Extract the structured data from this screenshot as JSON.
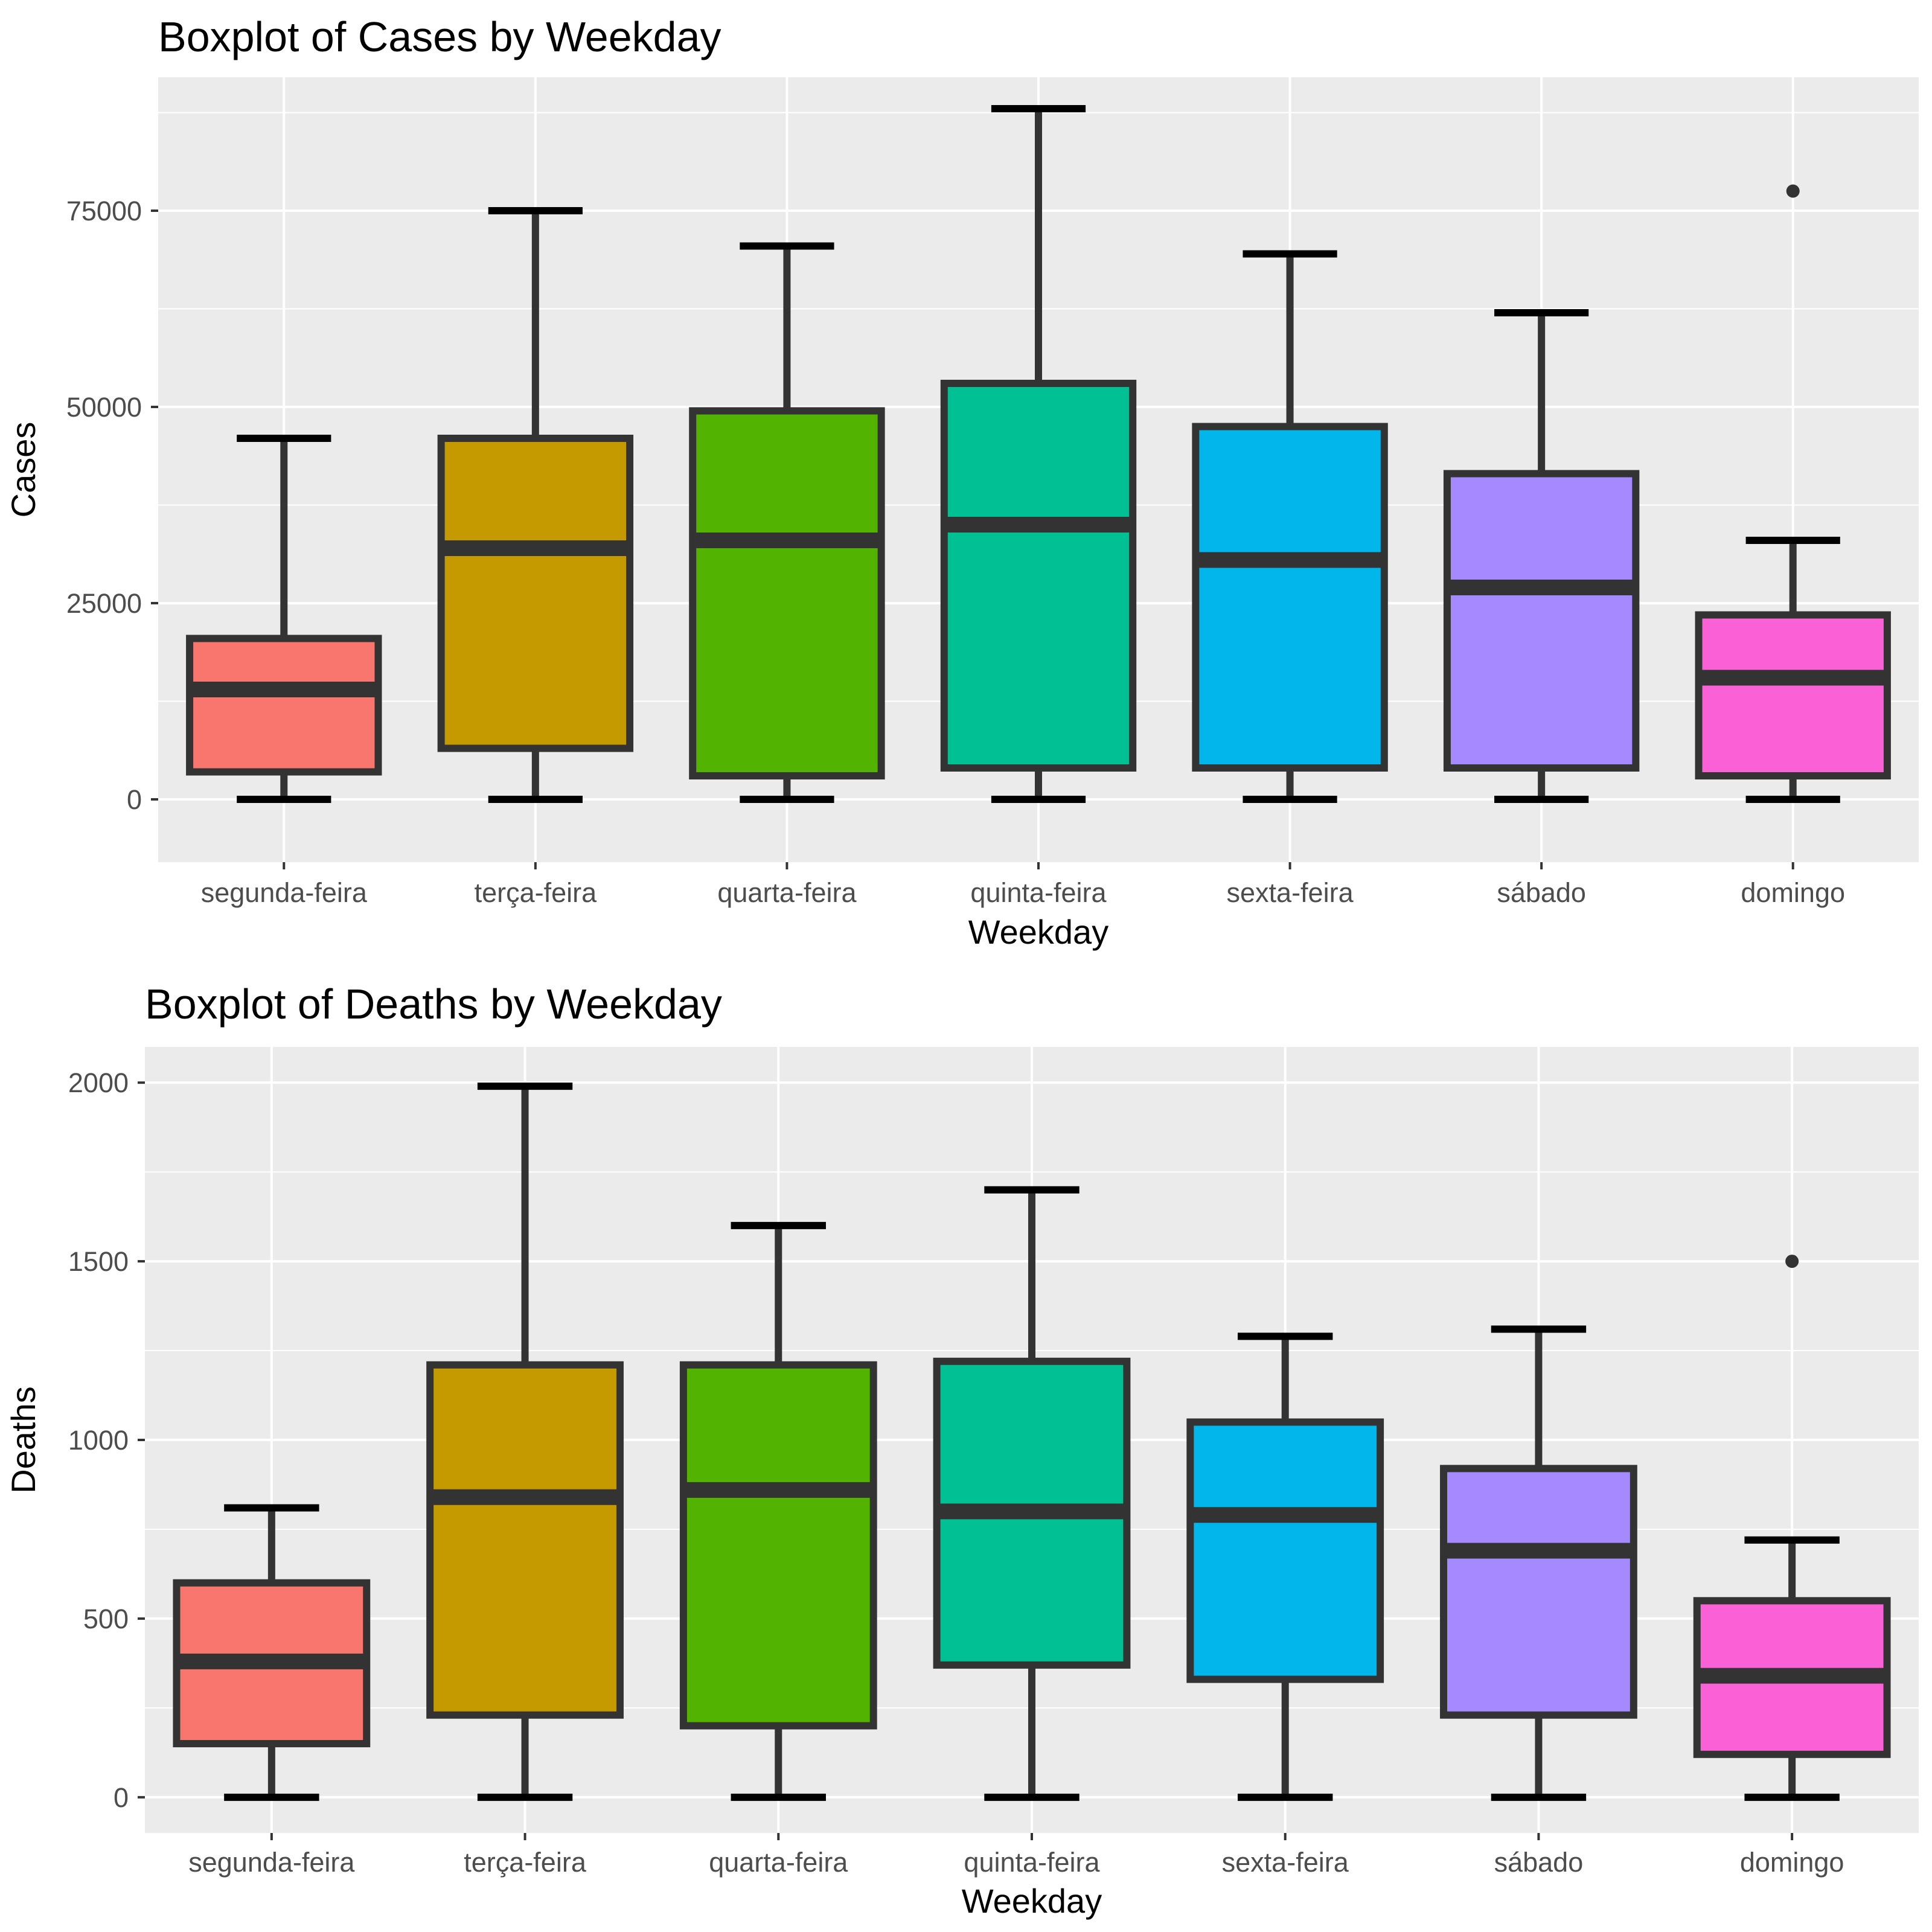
{
  "chart_data": [
    {
      "type": "boxplot",
      "title": "Boxplot of Cases by Weekday",
      "xlabel": "Weekday",
      "ylabel": "Cases",
      "ylim": [
        -8000,
        92000
      ],
      "yticks": [
        0,
        25000,
        50000,
        75000
      ],
      "ytick_labels": [
        "0",
        "25000",
        "50000",
        "75000"
      ],
      "grid": true,
      "legend": "none",
      "categories": [
        "segunda-feira",
        "terça-feira",
        "quarta-feira",
        "quinta-feira",
        "sexta-feira",
        "sábado",
        "domingo"
      ],
      "colors": [
        "#F8766D",
        "#C49A00",
        "#53B400",
        "#00C094",
        "#00B6EB",
        "#A58AFF",
        "#FB61D7"
      ],
      "boxes": [
        {
          "min": 0,
          "q1": 3500,
          "median": 14000,
          "q3": 20500,
          "max": 46000,
          "outliers": []
        },
        {
          "min": 0,
          "q1": 6500,
          "median": 32000,
          "q3": 46000,
          "max": 75000,
          "outliers": []
        },
        {
          "min": 0,
          "q1": 3000,
          "median": 33000,
          "q3": 49500,
          "max": 70500,
          "outliers": []
        },
        {
          "min": 0,
          "q1": 4000,
          "median": 35000,
          "q3": 53000,
          "max": 88000,
          "outliers": []
        },
        {
          "min": 0,
          "q1": 4000,
          "median": 30500,
          "q3": 47500,
          "max": 69500,
          "outliers": []
        },
        {
          "min": 0,
          "q1": 4000,
          "median": 27000,
          "q3": 41500,
          "max": 62000,
          "outliers": []
        },
        {
          "min": 0,
          "q1": 3000,
          "median": 15500,
          "q3": 23500,
          "max": 33000,
          "outliers": [
            77500
          ]
        }
      ]
    },
    {
      "type": "boxplot",
      "title": "Boxplot of Deaths by Weekday",
      "xlabel": "Weekday",
      "ylabel": "Deaths",
      "ylim": [
        -100,
        2100
      ],
      "yticks": [
        0,
        500,
        1000,
        1500,
        2000
      ],
      "ytick_labels": [
        "0",
        "500",
        "1000",
        "1500",
        "2000"
      ],
      "grid": true,
      "legend": "none",
      "categories": [
        "segunda-feira",
        "terça-feira",
        "quarta-feira",
        "quinta-feira",
        "sexta-feira",
        "sábado",
        "domingo"
      ],
      "colors": [
        "#F8766D",
        "#C49A00",
        "#53B400",
        "#00C094",
        "#00B6EB",
        "#A58AFF",
        "#FB61D7"
      ],
      "boxes": [
        {
          "min": 0,
          "q1": 150,
          "median": 380,
          "q3": 600,
          "max": 810,
          "outliers": []
        },
        {
          "min": 0,
          "q1": 230,
          "median": 840,
          "q3": 1210,
          "max": 1990,
          "outliers": []
        },
        {
          "min": 0,
          "q1": 200,
          "median": 860,
          "q3": 1210,
          "max": 1600,
          "outliers": []
        },
        {
          "min": 0,
          "q1": 370,
          "median": 800,
          "q3": 1220,
          "max": 1700,
          "outliers": []
        },
        {
          "min": 0,
          "q1": 330,
          "median": 790,
          "q3": 1050,
          "max": 1290,
          "outliers": []
        },
        {
          "min": 0,
          "q1": 230,
          "median": 690,
          "q3": 920,
          "max": 1310,
          "outliers": []
        },
        {
          "min": 0,
          "q1": 120,
          "median": 340,
          "q3": 550,
          "max": 720,
          "outliers": [
            1500
          ]
        }
      ]
    }
  ]
}
